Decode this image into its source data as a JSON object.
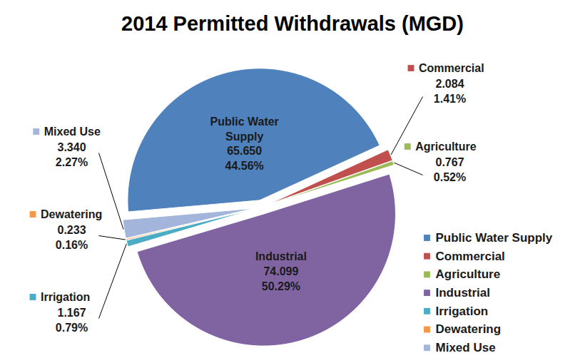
{
  "chart_data": {
    "type": "pie",
    "title": "2014 Permitted Withdrawals (MGD)",
    "categories": [
      "Public Water Supply",
      "Commercial",
      "Agriculture",
      "Industrial",
      "Irrigation",
      "Dewatering",
      "Mixed Use"
    ],
    "values": [
      65.65,
      2.084,
      0.767,
      74.099,
      1.167,
      0.233,
      3.34
    ],
    "value_labels": [
      "65.650",
      "2.084",
      "0.767",
      "74.099",
      "1.167",
      "0.233",
      "3.340"
    ],
    "percentages": [
      44.56,
      1.41,
      0.52,
      50.29,
      0.79,
      0.16,
      2.27
    ],
    "percentage_labels": [
      "44.56%",
      "1.41%",
      "0.52%",
      "50.29%",
      "0.79%",
      "0.16%",
      "2.27%"
    ],
    "colors": [
      "#4f81bd",
      "#c0504d",
      "#9bbb59",
      "#8064a2",
      "#4bacc6",
      "#f79646",
      "#a3b5da"
    ],
    "data_labels": true,
    "legend": "right"
  }
}
